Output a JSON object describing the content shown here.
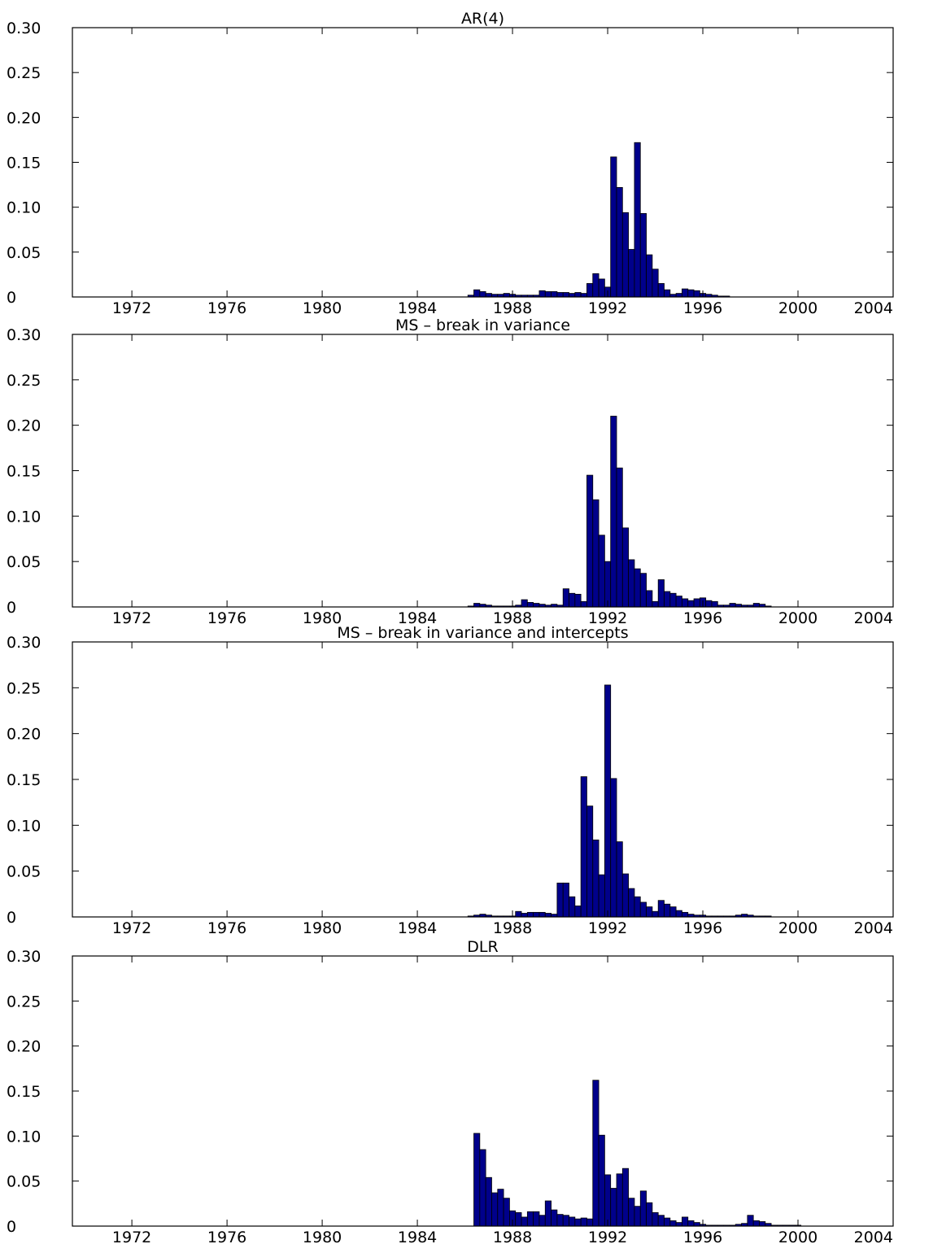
{
  "chart_data": [
    {
      "type": "bar",
      "title": "AR(4)",
      "xlabel": "",
      "ylabel": "",
      "xlim": [
        1969.5,
        2004
      ],
      "ylim": [
        0,
        0.3
      ],
      "bar_width": 0.25,
      "color": "#00008b",
      "grid": false,
      "yticks": [
        0,
        0.05,
        0.1,
        0.15,
        0.2,
        0.25,
        0.3
      ],
      "yticklabels": [
        "0",
        "0.05",
        "0.10",
        "0.15",
        "0.20",
        "0.25",
        "0.30"
      ],
      "xticks": [
        1972,
        1976,
        1980,
        1984,
        1988,
        1992,
        1996,
        2000,
        2004
      ],
      "xticklabels": [
        "1972",
        "1976",
        "1980",
        "1984",
        "1988",
        "1992",
        "1996",
        "2000",
        "2004"
      ],
      "x": [
        1986.25,
        1986.5,
        1986.75,
        1987,
        1987.25,
        1987.5,
        1987.75,
        1988,
        1988.25,
        1988.5,
        1988.75,
        1989,
        1989.25,
        1989.5,
        1989.75,
        1990,
        1990.25,
        1990.5,
        1990.75,
        1991,
        1991.25,
        1991.5,
        1991.75,
        1992,
        1992.25,
        1992.5,
        1992.75,
        1993,
        1993.25,
        1993.5,
        1993.75,
        1994,
        1994.25,
        1994.5,
        1994.75,
        1995,
        1995.25,
        1995.5,
        1995.75,
        1996,
        1996.25,
        1996.5,
        1996.75,
        1997
      ],
      "values": [
        0.002,
        0.008,
        0.006,
        0.004,
        0.003,
        0.003,
        0.004,
        0.003,
        0.002,
        0.002,
        0.002,
        0.002,
        0.007,
        0.006,
        0.006,
        0.005,
        0.005,
        0.004,
        0.005,
        0.004,
        0.015,
        0.026,
        0.02,
        0.011,
        0.156,
        0.122,
        0.094,
        0.053,
        0.172,
        0.093,
        0.047,
        0.031,
        0.015,
        0.008,
        0.003,
        0.004,
        0.009,
        0.008,
        0.007,
        0.004,
        0.003,
        0.002,
        0.001,
        0.001
      ]
    },
    {
      "type": "bar",
      "title": "MS – break in variance",
      "xlabel": "",
      "ylabel": "",
      "xlim": [
        1969.5,
        2004
      ],
      "ylim": [
        0,
        0.3
      ],
      "bar_width": 0.25,
      "color": "#00008b",
      "grid": false,
      "yticks": [
        0,
        0.05,
        0.1,
        0.15,
        0.2,
        0.25,
        0.3
      ],
      "yticklabels": [
        "0",
        "0.05",
        "0.10",
        "0.15",
        "0.20",
        "0.25",
        "0.30"
      ],
      "xticks": [
        1972,
        1976,
        1980,
        1984,
        1988,
        1992,
        1996,
        2000,
        2004
      ],
      "xticklabels": [
        "1972",
        "1976",
        "1980",
        "1984",
        "1988",
        "1992",
        "1996",
        "2000",
        "2004"
      ],
      "x": [
        1986.25,
        1986.5,
        1986.75,
        1987,
        1987.25,
        1987.5,
        1987.75,
        1988,
        1988.25,
        1988.5,
        1988.75,
        1989,
        1989.25,
        1989.5,
        1989.75,
        1990,
        1990.25,
        1990.5,
        1990.75,
        1991,
        1991.25,
        1991.5,
        1991.75,
        1992,
        1992.25,
        1992.5,
        1992.75,
        1993,
        1993.25,
        1993.5,
        1993.75,
        1994,
        1994.25,
        1994.5,
        1994.75,
        1995,
        1995.25,
        1995.5,
        1995.75,
        1996,
        1996.25,
        1996.5,
        1996.75,
        1997,
        1997.25,
        1997.5,
        1997.75,
        1998,
        1998.25,
        1998.5,
        1998.75
      ],
      "values": [
        0.001,
        0.004,
        0.003,
        0.002,
        0.001,
        0.001,
        0.001,
        0.001,
        0.002,
        0.008,
        0.005,
        0.004,
        0.003,
        0.002,
        0.003,
        0.002,
        0.02,
        0.015,
        0.014,
        0.006,
        0.145,
        0.118,
        0.079,
        0.05,
        0.21,
        0.153,
        0.087,
        0.052,
        0.042,
        0.037,
        0.018,
        0.006,
        0.03,
        0.017,
        0.015,
        0.012,
        0.009,
        0.007,
        0.009,
        0.01,
        0.007,
        0.006,
        0.002,
        0.002,
        0.004,
        0.003,
        0.002,
        0.002,
        0.004,
        0.003,
        0.001
      ]
    },
    {
      "type": "bar",
      "title": "MS – break in variance and intercepts",
      "xlabel": "",
      "ylabel": "",
      "xlim": [
        1969.5,
        2004
      ],
      "ylim": [
        0,
        0.3
      ],
      "bar_width": 0.25,
      "color": "#00008b",
      "grid": false,
      "yticks": [
        0,
        0.05,
        0.1,
        0.15,
        0.2,
        0.25,
        0.3
      ],
      "yticklabels": [
        "0",
        "0.05",
        "0.10",
        "0.15",
        "0.20",
        "0.25",
        "0.30"
      ],
      "xticks": [
        1972,
        1976,
        1980,
        1984,
        1988,
        1992,
        1996,
        2000,
        2004
      ],
      "xticklabels": [
        "1972",
        "1976",
        "1980",
        "1984",
        "1988",
        "1992",
        "1996",
        "2000",
        "2004"
      ],
      "x": [
        1986.25,
        1986.5,
        1986.75,
        1987,
        1987.25,
        1987.5,
        1987.75,
        1988,
        1988.25,
        1988.5,
        1988.75,
        1989,
        1989.25,
        1989.5,
        1989.75,
        1990,
        1990.25,
        1990.5,
        1990.75,
        1991,
        1991.25,
        1991.5,
        1991.75,
        1992,
        1992.25,
        1992.5,
        1992.75,
        1993,
        1993.25,
        1993.5,
        1993.75,
        1994,
        1994.25,
        1994.5,
        1994.75,
        1995,
        1995.25,
        1995.5,
        1995.75,
        1996,
        1996.25,
        1996.5,
        1996.75,
        1997,
        1997.25,
        1997.5,
        1997.75,
        1998,
        1998.25,
        1998.5,
        1998.75
      ],
      "values": [
        0.001,
        0.002,
        0.003,
        0.002,
        0.001,
        0.001,
        0.001,
        0.001,
        0.006,
        0.004,
        0.005,
        0.005,
        0.005,
        0.004,
        0.003,
        0.037,
        0.037,
        0.022,
        0.012,
        0.153,
        0.121,
        0.084,
        0.046,
        0.253,
        0.151,
        0.082,
        0.047,
        0.031,
        0.022,
        0.016,
        0.011,
        0.006,
        0.018,
        0.014,
        0.011,
        0.007,
        0.005,
        0.003,
        0.002,
        0.002,
        0.001,
        0.001,
        0.001,
        0.001,
        0.001,
        0.002,
        0.003,
        0.002,
        0.001,
        0.001,
        0.001
      ]
    },
    {
      "type": "bar",
      "title": "DLR",
      "xlabel": "",
      "ylabel": "",
      "xlim": [
        1969.5,
        2004
      ],
      "ylim": [
        0,
        0.3
      ],
      "bar_width": 0.25,
      "color": "#00008b",
      "grid": false,
      "yticks": [
        0,
        0.05,
        0.1,
        0.15,
        0.2,
        0.25,
        0.3
      ],
      "yticklabels": [
        "0",
        "0.05",
        "0.10",
        "0.15",
        "0.20",
        "0.25",
        "0.30"
      ],
      "xticks": [
        1972,
        1976,
        1980,
        1984,
        1988,
        1992,
        1996,
        2000,
        2004
      ],
      "xticklabels": [
        "1972",
        "1976",
        "1980",
        "1984",
        "1988",
        "1992",
        "1996",
        "2000",
        "2004"
      ],
      "x": [
        1986.5,
        1986.75,
        1987,
        1987.25,
        1987.5,
        1987.75,
        1988,
        1988.25,
        1988.5,
        1988.75,
        1989,
        1989.25,
        1989.5,
        1989.75,
        1990,
        1990.25,
        1990.5,
        1990.75,
        1991,
        1991.25,
        1991.5,
        1991.75,
        1992,
        1992.25,
        1992.5,
        1992.75,
        1993,
        1993.25,
        1993.5,
        1993.75,
        1994,
        1994.25,
        1994.5,
        1994.75,
        1995,
        1995.25,
        1995.5,
        1995.75,
        1996,
        1996.25,
        1996.5,
        1996.75,
        1997,
        1997.25,
        1997.5,
        1997.75,
        1998,
        1998.25,
        1998.5,
        1998.75,
        1999,
        1999.25,
        1999.5,
        1999.75,
        2000
      ],
      "values": [
        0.103,
        0.085,
        0.054,
        0.037,
        0.041,
        0.031,
        0.017,
        0.015,
        0.01,
        0.016,
        0.016,
        0.012,
        0.028,
        0.018,
        0.013,
        0.012,
        0.01,
        0.008,
        0.009,
        0.008,
        0.162,
        0.101,
        0.057,
        0.042,
        0.058,
        0.064,
        0.031,
        0.022,
        0.039,
        0.026,
        0.015,
        0.012,
        0.009,
        0.006,
        0.004,
        0.01,
        0.006,
        0.004,
        0.002,
        0.001,
        0.001,
        0.001,
        0.001,
        0.001,
        0.002,
        0.003,
        0.012,
        0.006,
        0.005,
        0.003,
        0.001,
        0.001,
        0.001,
        0.001,
        0.001
      ]
    }
  ]
}
